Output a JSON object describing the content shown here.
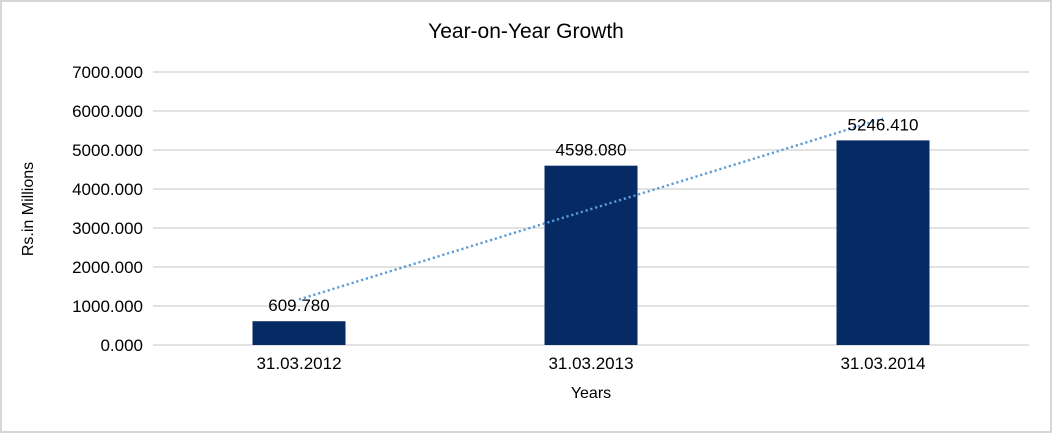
{
  "chart_data": {
    "type": "bar",
    "title": "Year-on-Year Growth",
    "xlabel": "Years",
    "ylabel": "Rs.in Millions",
    "categories": [
      "31.03.2012",
      "31.03.2013",
      "31.03.2014"
    ],
    "values": [
      609.78,
      4598.08,
      5246.41
    ],
    "data_labels": [
      "609.780",
      "4598.080",
      "5246.410"
    ],
    "y_ticks": [
      "0.000",
      "1000.000",
      "2000.000",
      "3000.000",
      "4000.000",
      "5000.000",
      "6000.000",
      "7000.000"
    ],
    "ylim": [
      0,
      7000
    ],
    "grid": true,
    "legend": "none",
    "trendline": {
      "type": "linear",
      "style": "dotted",
      "spans": "first-to-last-category"
    },
    "colors": {
      "bar": "#062a64",
      "trendline": "#5b9bd5",
      "gridline": "#d9d9d9",
      "axis_line": "#d9d9d9",
      "text": "#000000",
      "frame_border": "#d6d6d6",
      "background": "#ffffff"
    }
  }
}
